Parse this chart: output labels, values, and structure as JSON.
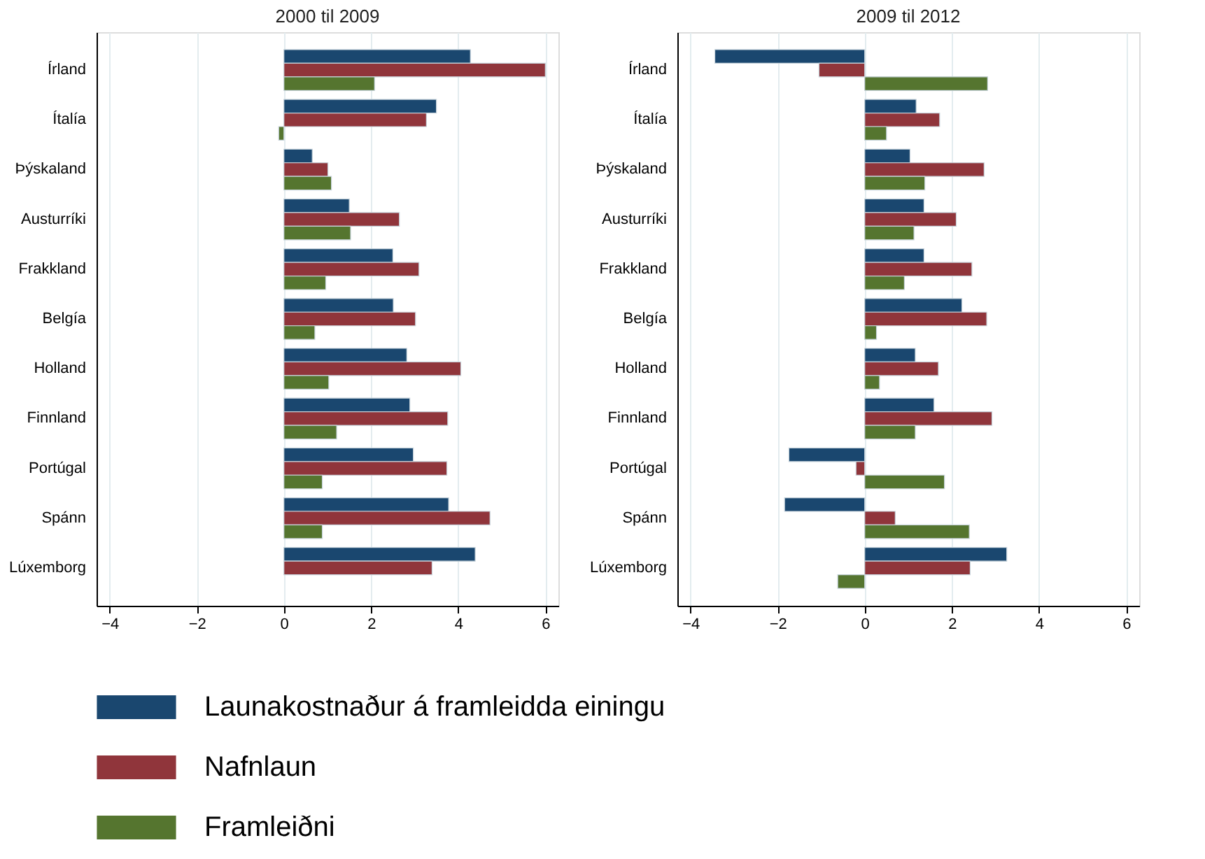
{
  "chart_data": [
    {
      "type": "bar",
      "orientation": "horizontal",
      "title": "2000 til 2009",
      "categories": [
        "Írland",
        "Ítalía",
        "Þýskaland",
        "Austurríki",
        "Frakkland",
        "Belgía",
        "Holland",
        "Finnland",
        "Portúgal",
        "Spánn",
        "Lúxemborg"
      ],
      "series": [
        {
          "name": "Launakostnaður á framleidda einingu",
          "color": "#1a476f",
          "values": [
            4.28,
            3.5,
            0.65,
            1.5,
            2.5,
            2.51,
            2.82,
            2.89,
            2.97,
            3.78,
            4.39
          ]
        },
        {
          "name": "Nafnlaun",
          "color": "#90353b",
          "values": [
            6.0,
            3.27,
            1.01,
            2.65,
            3.1,
            3.02,
            4.06,
            3.76,
            3.74,
            4.73,
            3.4
          ]
        },
        {
          "name": "Framleiðni",
          "color": "#55752f",
          "values": [
            2.08,
            -0.12,
            1.09,
            1.53,
            0.96,
            0.71,
            1.03,
            1.21,
            0.88,
            0.88,
            null
          ]
        }
      ],
      "xlim": [
        -4.3,
        6.3
      ],
      "xticks": [
        -4,
        -2,
        0,
        2,
        4,
        6
      ],
      "grid": "x",
      "legend": "bottom"
    },
    {
      "type": "bar",
      "orientation": "horizontal",
      "title": "2009 til 2012",
      "categories": [
        "Írland",
        "Ítalía",
        "Þýskaland",
        "Austurríki",
        "Frakkland",
        "Belgía",
        "Holland",
        "Finnland",
        "Portúgal",
        "Spánn",
        "Lúxemborg"
      ],
      "series": [
        {
          "name": "Launakostnaður á framleidda einingu",
          "color": "#1a476f",
          "values": [
            -3.44,
            1.18,
            1.04,
            1.36,
            1.36,
            2.23,
            1.16,
            1.59,
            -1.74,
            -1.84,
            3.26
          ]
        },
        {
          "name": "Nafnlaun",
          "color": "#90353b",
          "values": [
            -1.05,
            1.72,
            2.74,
            2.1,
            2.46,
            2.8,
            1.69,
            2.92,
            -0.2,
            0.7,
            2.42
          ]
        },
        {
          "name": "Framleiðni",
          "color": "#55752f",
          "values": [
            2.82,
            0.5,
            1.38,
            1.13,
            0.91,
            0.27,
            0.34,
            1.16,
            1.83,
            2.4,
            -0.62
          ]
        }
      ],
      "xlim": [
        -4.3,
        6.3
      ],
      "xticks": [
        -4,
        -2,
        0,
        2,
        4,
        6
      ],
      "grid": "x",
      "legend": "bottom"
    }
  ]
}
